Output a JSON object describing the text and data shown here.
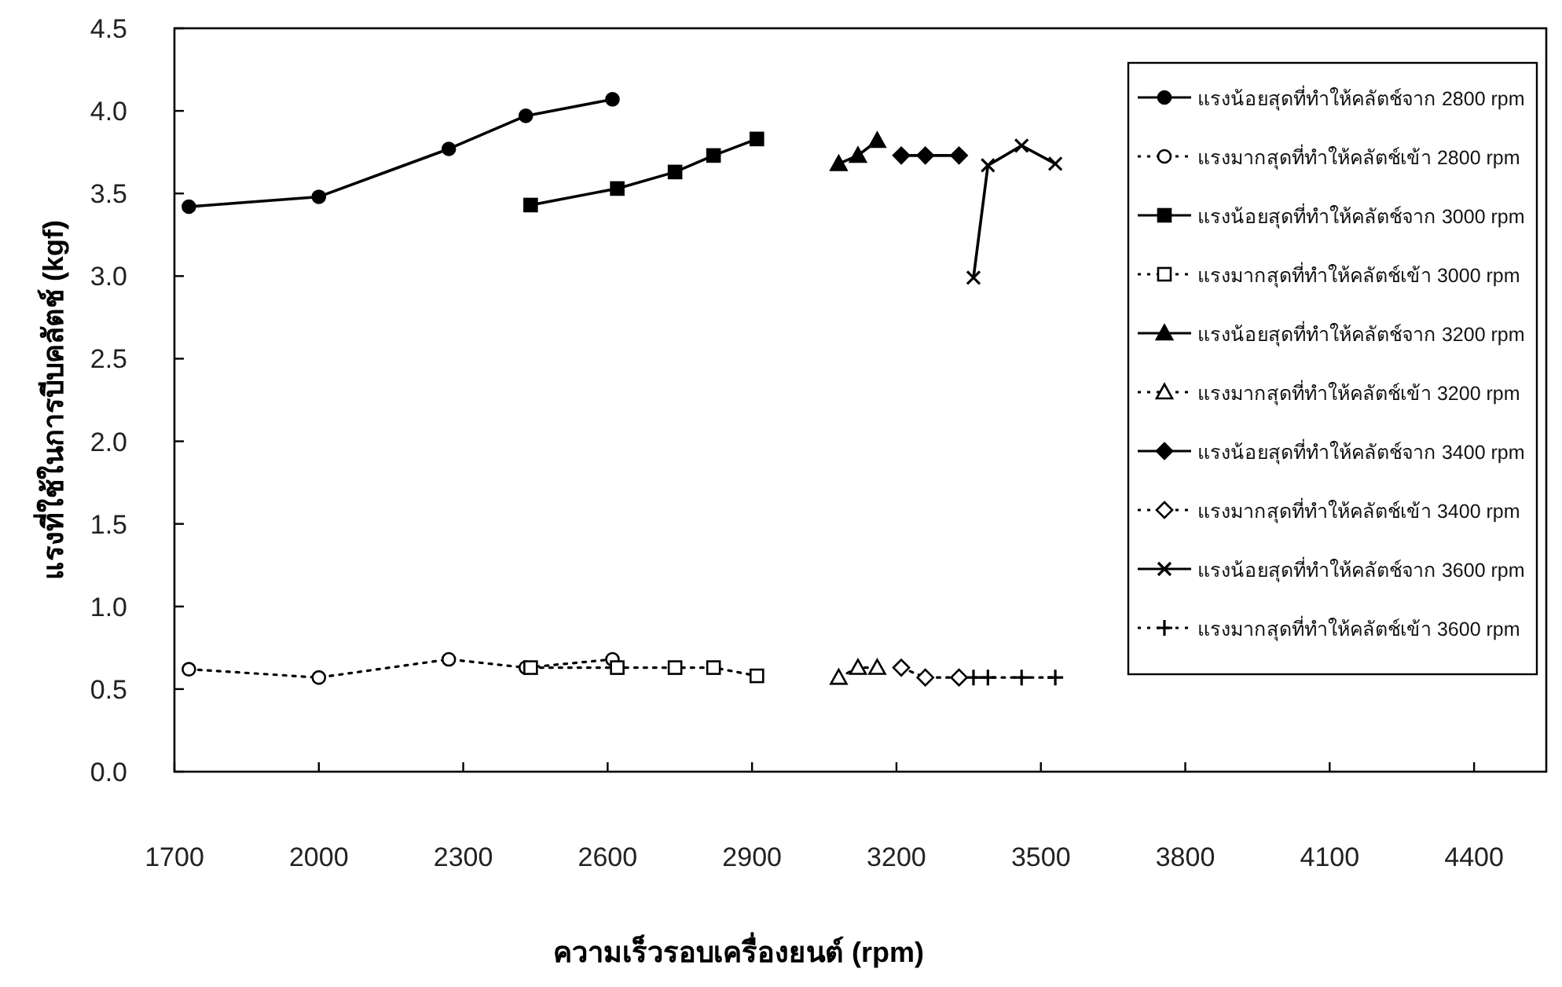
{
  "chart_data": {
    "type": "line",
    "xlabel": "ความเร็วรอบเครื่องยนต์ (rpm)",
    "ylabel": "แรงที่ใช้ในการบีบคลัตช์ (kgf)",
    "xlim": [
      1700,
      4550
    ],
    "xticks": [
      1700,
      2000,
      2300,
      2600,
      2900,
      3200,
      3500,
      3800,
      4100,
      4400
    ],
    "ylim": [
      0,
      4.5
    ],
    "yticks": [
      {
        "value": 0,
        "label": "0.0"
      },
      {
        "value": 0.5,
        "label": "0.5"
      },
      {
        "value": 1,
        "label": "1.0"
      },
      {
        "value": 1.5,
        "label": "1.5"
      },
      {
        "value": 2,
        "label": "2.0"
      },
      {
        "value": 2.5,
        "label": "2.5"
      },
      {
        "value": 3,
        "label": "3.0"
      },
      {
        "value": 3.5,
        "label": "3.5"
      },
      {
        "value": 4,
        "label": "4.0"
      },
      {
        "value": 4.5,
        "label": "4.5"
      }
    ],
    "grid": false,
    "legend": "top right",
    "series": [
      {
        "name": "แรงน้อยสุดที่ทำให้คลัตช์จาก 2800 rpm",
        "color": "#000000",
        "marker": "circle",
        "line_style": "solid",
        "x": [
          1730,
          2000,
          2270,
          2430,
          2610
        ],
        "values": [
          3.42,
          3.48,
          3.77,
          3.97,
          4.07
        ]
      },
      {
        "name": "แรงมากสุดที่ทำให้คลัตช์เข้า 2800 rpm",
        "color": "#000000",
        "marker": "circle",
        "line_style": "dotted",
        "x": [
          1730,
          2000,
          2270,
          2430,
          2610
        ],
        "values": [
          0.62,
          0.57,
          0.68,
          0.63,
          0.68
        ]
      },
      {
        "name": "แรงน้อยสุดที่ทำให้คลัตช์จาก 3000 rpm",
        "color": "#000000",
        "marker": "square",
        "line_style": "solid",
        "x": [
          2440,
          2620,
          2740,
          2820,
          2910
        ],
        "values": [
          3.43,
          3.53,
          3.63,
          3.73,
          3.83
        ]
      },
      {
        "name": "แรงมากสุดที่ทำให้คลัตช์เข้า 3000 rpm",
        "color": "#000000",
        "marker": "square",
        "line_style": "dotted",
        "x": [
          2440,
          2620,
          2740,
          2820,
          2910
        ],
        "values": [
          0.63,
          0.63,
          0.63,
          0.63,
          0.58
        ]
      },
      {
        "name": "แรงน้อยสุดที่ทำให้คลัตช์จาก 3200 rpm",
        "color": "#000000",
        "marker": "triangle",
        "line_style": "solid",
        "x": [
          3080,
          3120,
          3160
        ],
        "values": [
          3.68,
          3.73,
          3.82
        ]
      },
      {
        "name": "แรงมากสุดที่ทำให้คลัตช์เข้า 3200 rpm",
        "color": "#000000",
        "marker": "triangle",
        "line_style": "dotted",
        "x": [
          3080,
          3120,
          3160
        ],
        "values": [
          0.57,
          0.63,
          0.63
        ]
      },
      {
        "name": "แรงน้อยสุดที่ทำให้คลัตช์จาก 3400 rpm",
        "color": "#000000",
        "marker": "diamond",
        "line_style": "solid",
        "x": [
          3210,
          3260,
          3330
        ],
        "values": [
          3.73,
          3.73,
          3.73
        ]
      },
      {
        "name": "แรงมากสุดที่ทำให้คลัตช์เข้า 3400 rpm",
        "color": "#000000",
        "marker": "diamond",
        "line_style": "dotted",
        "x": [
          3210,
          3260,
          3330
        ],
        "values": [
          0.63,
          0.57,
          0.57
        ]
      },
      {
        "name": "แรงน้อยสุดที่ทำให้คลัตช์จาก 3600 rpm",
        "color": "#000000",
        "marker": "cross",
        "line_style": "solid",
        "x": [
          3360,
          3390,
          3460,
          3530
        ],
        "values": [
          2.99,
          3.67,
          3.79,
          3.68
        ]
      },
      {
        "name": "แรงมากสุดที่ทำให้คลัตช์เข้า 3600 rpm",
        "color": "#000000",
        "marker": "cross",
        "line_style": "dotted",
        "x": [
          3360,
          3390,
          3460,
          3530
        ],
        "values": [
          0.57,
          0.57,
          0.57,
          0.57
        ]
      }
    ]
  }
}
